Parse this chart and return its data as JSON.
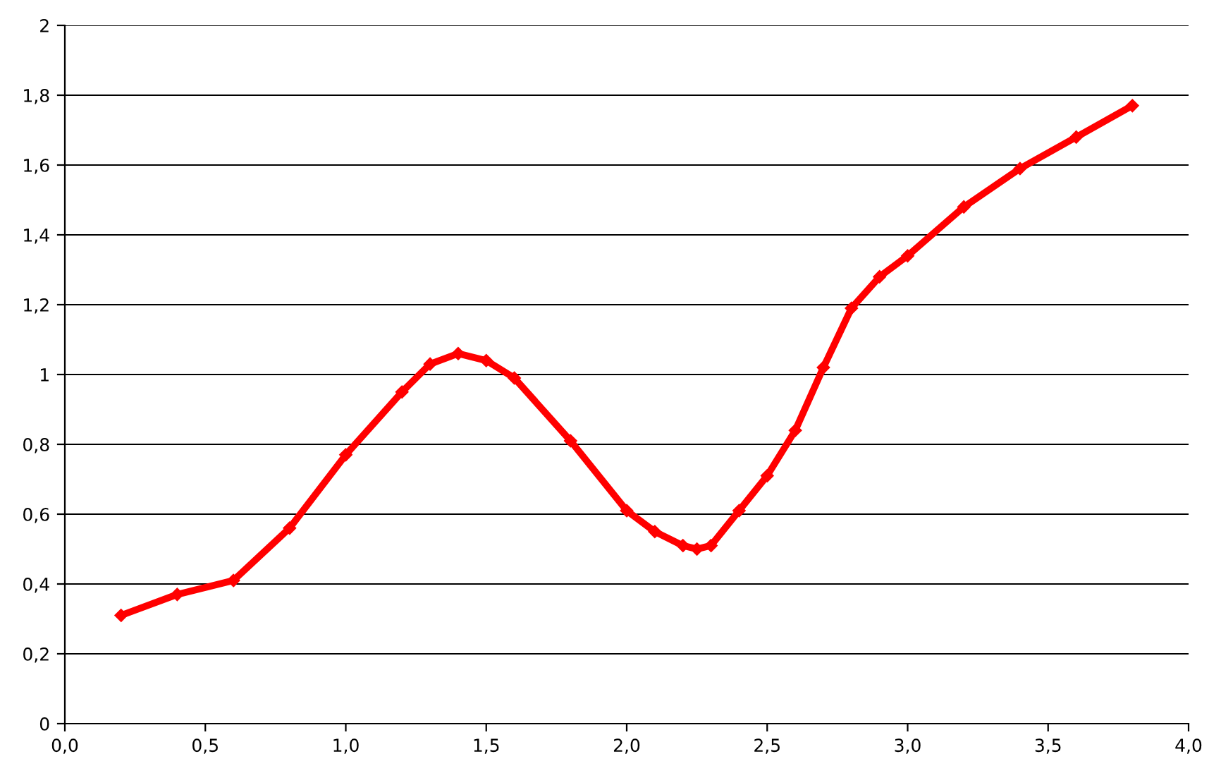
{
  "chart_data": {
    "type": "line",
    "x": [
      0.2,
      0.4,
      0.6,
      0.8,
      1.0,
      1.2,
      1.3,
      1.4,
      1.5,
      1.6,
      1.8,
      2.0,
      2.1,
      2.2,
      2.25,
      2.3,
      2.4,
      2.5,
      2.6,
      2.7,
      2.8,
      2.9,
      3.0,
      3.2,
      3.4,
      3.6,
      3.8
    ],
    "series": [
      {
        "color": "#ff0000",
        "values": [
          0.31,
          0.37,
          0.41,
          0.56,
          0.77,
          0.95,
          1.03,
          1.06,
          1.04,
          0.99,
          0.81,
          0.61,
          0.55,
          0.51,
          0.5,
          0.51,
          0.61,
          0.71,
          0.84,
          1.02,
          1.19,
          1.28,
          1.34,
          1.48,
          1.59,
          1.68,
          1.77
        ]
      }
    ],
    "xlim": [
      0,
      4
    ],
    "xticks": [
      {
        "value": 0,
        "label": "0,0"
      },
      {
        "value": 0.5,
        "label": "0,5"
      },
      {
        "value": 1,
        "label": "1,0"
      },
      {
        "value": 1.5,
        "label": "1,5"
      },
      {
        "value": 2,
        "label": "2,0"
      },
      {
        "value": 2.5,
        "label": "2,5"
      },
      {
        "value": 3,
        "label": "3,0"
      },
      {
        "value": 3.5,
        "label": "3,5"
      },
      {
        "value": 4,
        "label": "4,0"
      }
    ],
    "ylim": [
      0,
      2
    ],
    "yticks": [
      0,
      {
        "value": 0.2,
        "label": "0,2"
      },
      {
        "value": 0.4,
        "label": "0,4"
      },
      {
        "value": 0.6,
        "label": "0,6"
      },
      {
        "value": 0.8,
        "label": "0,8"
      },
      1,
      {
        "value": 1.2,
        "label": "1,2"
      },
      {
        "value": 1.4,
        "label": "1,4"
      },
      {
        "value": 1.6,
        "label": "1,6"
      },
      {
        "value": 1.8,
        "label": "1,8"
      },
      2
    ],
    "grid": "y",
    "marker": "diamond",
    "line_style": "solid"
  }
}
